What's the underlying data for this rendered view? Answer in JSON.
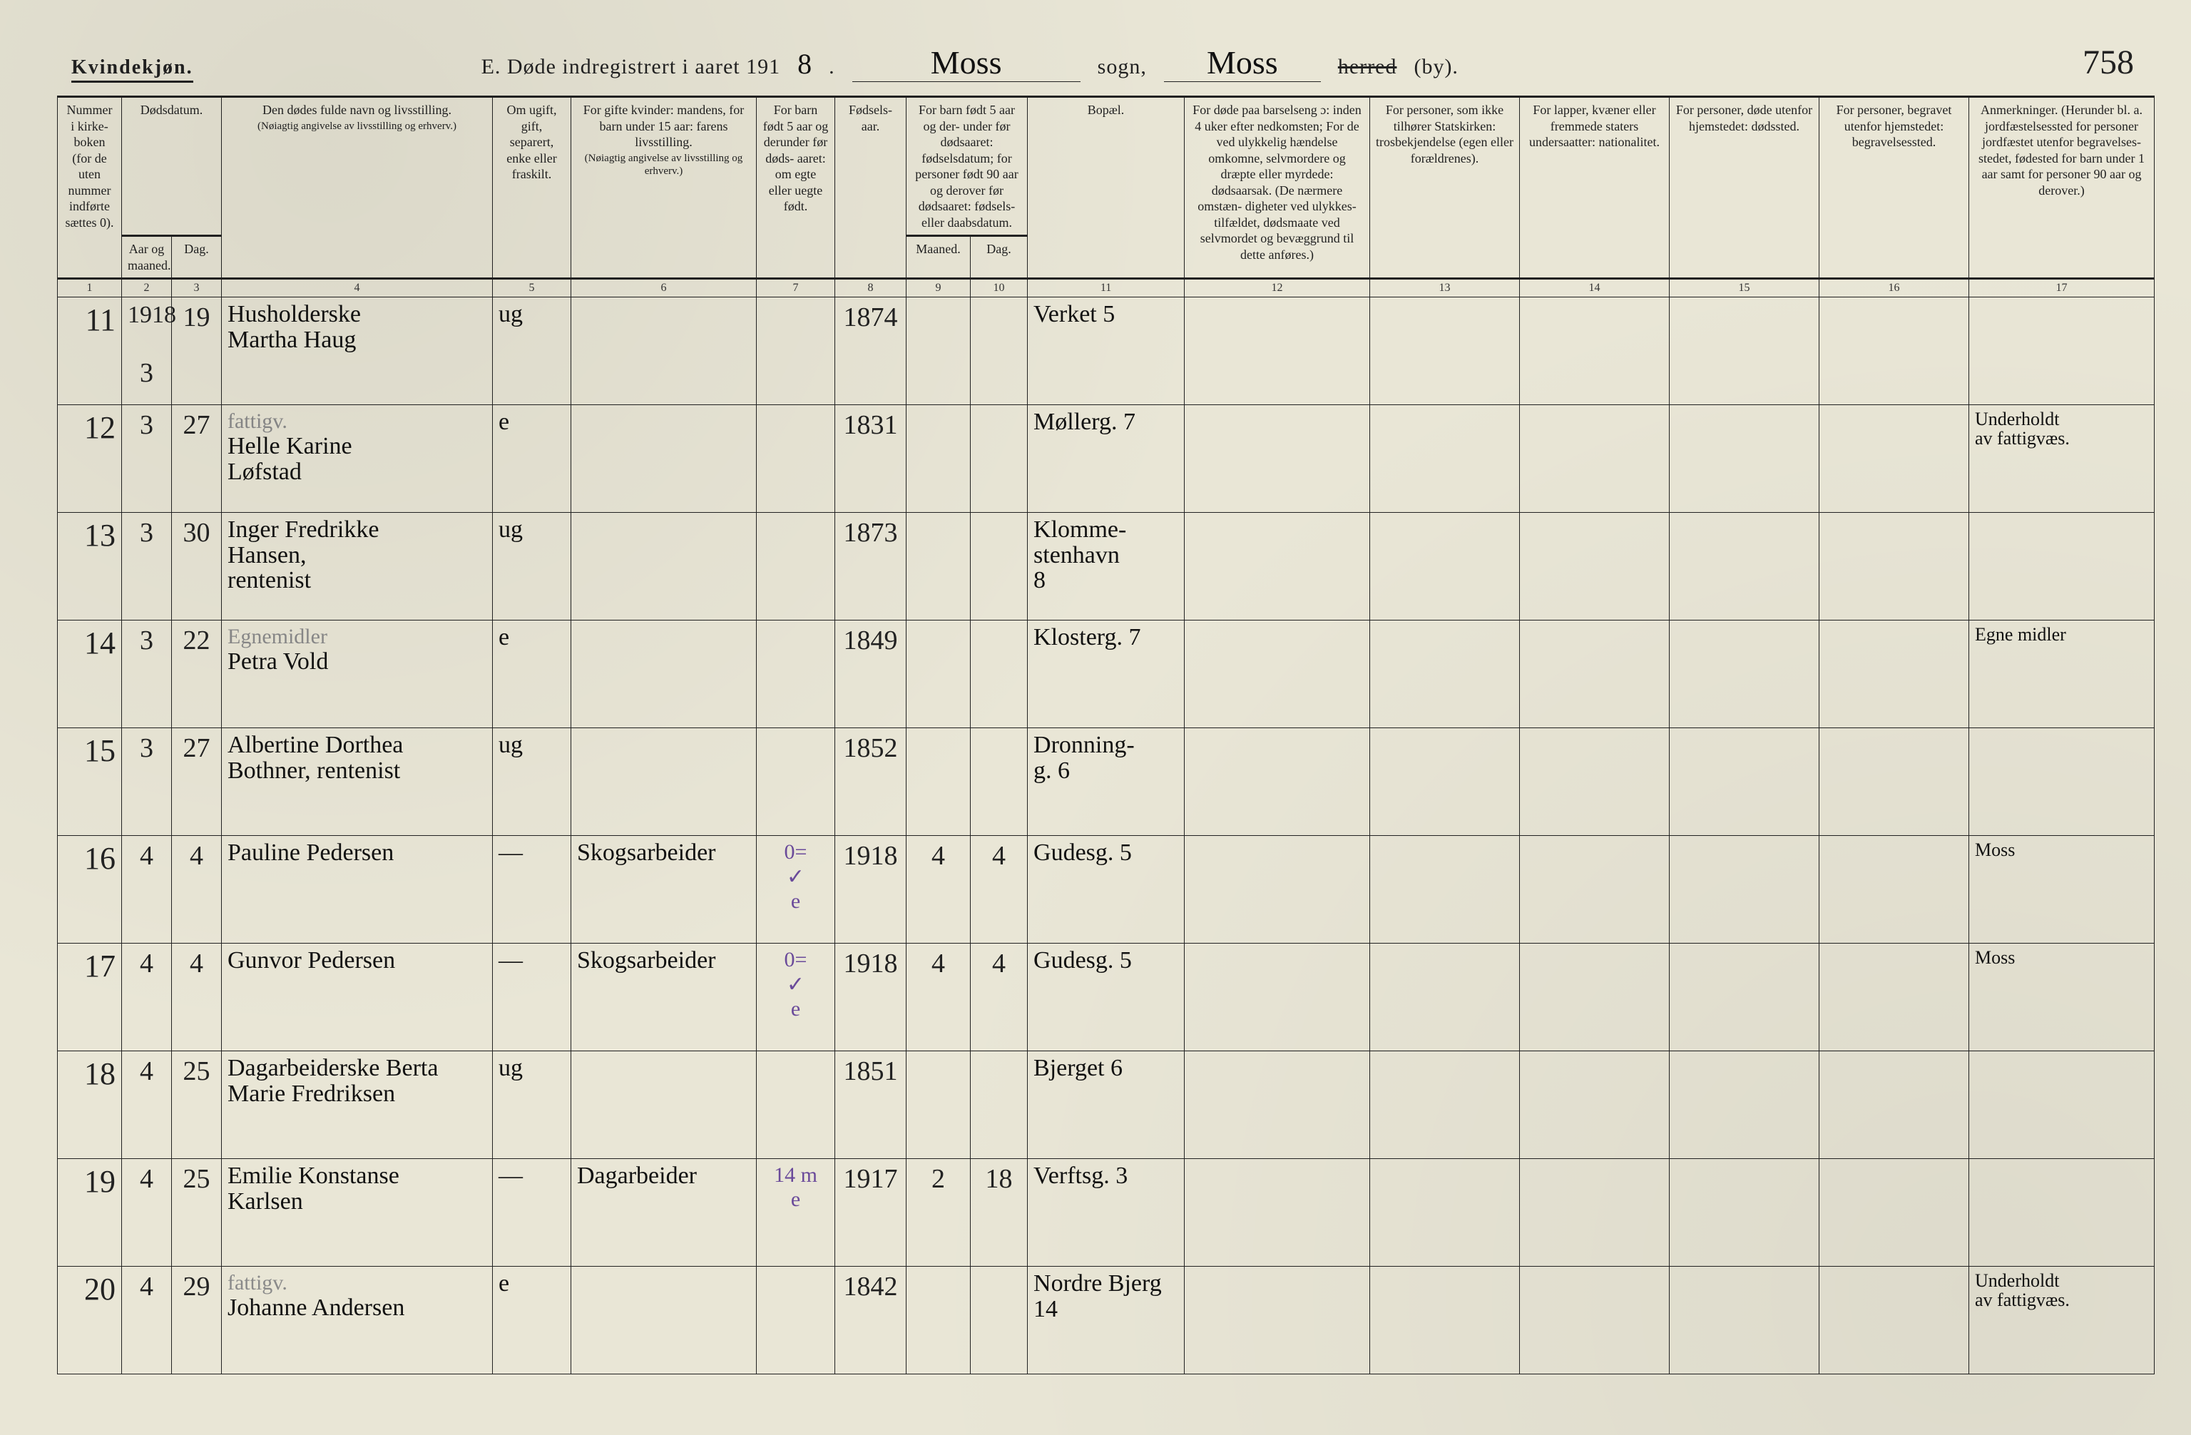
{
  "colors": {
    "paper": "#e9e6d6",
    "ink": "#222222",
    "pencil": "#8a8a8a",
    "purple": "#6a4a9a",
    "rule": "#222222"
  },
  "header": {
    "gender": "Kvindekjøn.",
    "title_prefix": "E.   Døde indregistrert i aaret 191",
    "year_suffix": "8",
    "sogn_value": "Moss",
    "sogn_label": "sogn,",
    "herred_value": "Moss",
    "herred_label_struck": "herred",
    "herred_label_after": "(by).",
    "page_number": "758"
  },
  "columns": {
    "c1": "Nummer i kirke- boken (for de uten nummer indførte sættes 0).",
    "c2_group": "Dødsdatum.",
    "c2a": "Aar og maaned.",
    "c2b": "Dag.",
    "c4": "Den dødes fulde navn og livsstilling.",
    "c4_sub": "(Nøiagtig angivelse av livsstilling og erhverv.)",
    "c5": "Om ugift, gift, separert, enke eller fraskilt.",
    "c6": "For gifte kvinder: mandens, for barn under 15 aar: farens livsstilling.",
    "c6_sub": "(Nøiagtig angivelse av livsstilling og erhverv.)",
    "c7": "For barn født 5 aar og derunder før døds- aaret: om egte eller uegte født.",
    "c8": "Fødsels- aar.",
    "c9_group": "For barn født 5 aar og der- under før dødsaaret: fødselsdatum; for personer født 90 aar og derover før dødsaaret: fødsels- eller daabsdatum.",
    "c9a": "Maaned.",
    "c9b": "Dag.",
    "c11": "Bopæl.",
    "c12": "For døde paa barselseng ɔ: inden 4 uker efter nedkomsten; For de ved ulykkelig hændelse omkomne, selvmordere og dræpte eller myrdede: dødsaarsak. (De nærmere omstæn- digheter ved ulykkes- tilfældet, dødsmaate ved selvmordet og bevæggrund til dette anføres.)",
    "c13": "For personer, som ikke tilhører Statskirken: trosbekjendelse (egen eller forældrenes).",
    "c14": "For lapper, kvæner eller fremmede staters undersaatter: nationalitet.",
    "c15": "For personer, døde utenfor hjemstedet: dødssted.",
    "c16": "For personer, begravet utenfor hjemstedet: begravelsessted.",
    "c17": "Anmerkninger. (Herunder bl. a. jordfæstelsessted for personer jordfæstet utenfor begravelses- stedet, fødested for barn under 1 aar samt for personer 90 aar og derover.)"
  },
  "colnums": [
    "1",
    "2",
    "3",
    "4",
    "5",
    "6",
    "7",
    "8",
    "9",
    "10",
    "11",
    "12",
    "13",
    "14",
    "15",
    "16",
    "17"
  ],
  "rows": [
    {
      "num": "11",
      "year_top": "1918",
      "aar": "3",
      "dag": "19",
      "navn": "Husholderske\nMartha Haug",
      "sivil": "ug",
      "mand": "",
      "egte": "",
      "faar": "1874",
      "fmnd": "",
      "fdag": "",
      "bopel": "Verket 5",
      "c17": ""
    },
    {
      "num": "12",
      "aar": "3",
      "dag": "27",
      "navn_pencil": "fattigv.",
      "navn": "Helle Karine\nLøfstad",
      "sivil": "e",
      "mand": "",
      "egte": "",
      "faar": "1831",
      "fmnd": "",
      "fdag": "",
      "bopel": "Møllerg. 7",
      "c17": "Underholdt\nav fattigvæs."
    },
    {
      "num": "13",
      "aar": "3",
      "dag": "30",
      "navn": "Inger Fredrikke\nHansen,\nrentenist",
      "sivil": "ug",
      "mand": "",
      "egte": "",
      "faar": "1873",
      "fmnd": "",
      "fdag": "",
      "bopel": "Klomme-\nstenhavn\n8",
      "c17": ""
    },
    {
      "num": "14",
      "aar": "3",
      "dag": "22",
      "navn_pencil": "Egnemidler",
      "navn": "Petra Vold",
      "sivil": "e",
      "mand": "",
      "egte": "",
      "faar": "1849",
      "fmnd": "",
      "fdag": "",
      "bopel": "Klosterg. 7",
      "c17": "Egne midler"
    },
    {
      "num": "15",
      "aar": "3",
      "dag": "27",
      "navn": "Albertine Dorthea\nBothner, rentenist",
      "sivil": "ug",
      "mand": "",
      "egte": "",
      "faar": "1852",
      "fmnd": "",
      "fdag": "",
      "bopel": "Dronning-\ng. 6",
      "c17": ""
    },
    {
      "num": "16",
      "aar": "4",
      "dag": "4",
      "navn": "Pauline Pedersen",
      "sivil": "—",
      "mand": "Skogsarbeider",
      "egte_top": "0=",
      "egte_mark": "✓",
      "egte_sub": "e",
      "faar": "1918",
      "fmnd": "4",
      "fdag": "4",
      "bopel": "Gudesg. 5",
      "c17": "Moss"
    },
    {
      "num": "17",
      "aar": "4",
      "dag": "4",
      "navn": "Gunvor Pedersen",
      "sivil": "—",
      "mand": "Skogsarbeider",
      "egte_top": "0=",
      "egte_mark": "✓",
      "egte_sub": "e",
      "faar": "1918",
      "fmnd": "4",
      "fdag": "4",
      "bopel": "Gudesg. 5",
      "c17": "Moss"
    },
    {
      "num": "18",
      "aar": "4",
      "dag": "25",
      "navn": "Dagarbeiderske Berta\nMarie Fredriksen",
      "sivil": "ug",
      "mand": "",
      "egte": "",
      "faar": "1851",
      "fmnd": "",
      "fdag": "",
      "bopel": "Bjerget 6",
      "c17": ""
    },
    {
      "num": "19",
      "aar": "4",
      "dag": "25",
      "navn": "Emilie Konstanse\nKarlsen",
      "sivil": "—",
      "mand": "Dagarbeider",
      "egte_top_purple": "14 m",
      "egte_sub": "e",
      "faar": "1917",
      "fmnd": "2",
      "fdag": "18",
      "bopel": "Verftsg. 3",
      "c17": ""
    },
    {
      "num": "20",
      "aar": "4",
      "dag": "29",
      "navn_pencil": "fattigv.",
      "navn": "Johanne Andersen",
      "sivil": "e",
      "mand": "",
      "egte": "",
      "faar": "1842",
      "fmnd": "",
      "fdag": "",
      "bopel": "Nordre Bjerg\n14",
      "c17": "Underholdt\nav fattigvæs."
    }
  ]
}
